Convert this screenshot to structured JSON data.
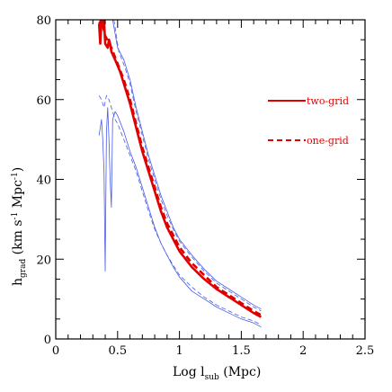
{
  "chart_data": {
    "type": "line",
    "xlabel": "Log l",
    "xlabel_sub": "sub",
    "xlabel_units": " (Mpc)",
    "ylabel": "h",
    "ylabel_sub": "grad",
    "ylabel_units": " (km s",
    "ylabel_exp1": "-1",
    "ylabel_mid": " Mpc",
    "ylabel_exp2": "-1",
    "ylabel_close": ")",
    "xlim": [
      0,
      2.5
    ],
    "ylim": [
      0,
      80
    ],
    "x_ticks": [
      0,
      0.5,
      1,
      1.5,
      2,
      2.5
    ],
    "x_tick_labels": [
      "0",
      "0.5",
      "1",
      "1.5",
      "2",
      "2.5"
    ],
    "y_ticks": [
      0,
      20,
      40,
      60,
      80
    ],
    "y_tick_labels": [
      "0",
      "20",
      "40",
      "60",
      "80"
    ],
    "legend_placement": "upper-right",
    "series": [
      {
        "name": "two-grid",
        "color": "#e00000",
        "style": "solid",
        "width": "thick",
        "points": [
          [
            0.35,
            79
          ],
          [
            0.36,
            74
          ],
          [
            0.37,
            80
          ],
          [
            0.38,
            79
          ],
          [
            0.39,
            80
          ],
          [
            0.4,
            74
          ],
          [
            0.42,
            73
          ],
          [
            0.43,
            75
          ],
          [
            0.44,
            74
          ],
          [
            0.45,
            72
          ],
          [
            0.48,
            70
          ],
          [
            0.52,
            67
          ],
          [
            0.56,
            63
          ],
          [
            0.6,
            59
          ],
          [
            0.65,
            53
          ],
          [
            0.7,
            47
          ],
          [
            0.75,
            42
          ],
          [
            0.8,
            37
          ],
          [
            0.85,
            32
          ],
          [
            0.9,
            28
          ],
          [
            0.95,
            25
          ],
          [
            1.0,
            22
          ],
          [
            1.1,
            18
          ],
          [
            1.2,
            15
          ],
          [
            1.3,
            12.5
          ],
          [
            1.4,
            10.5
          ],
          [
            1.5,
            8.5
          ],
          [
            1.6,
            6.5
          ],
          [
            1.66,
            5.5
          ]
        ]
      },
      {
        "name": "one-grid",
        "color": "#e00000",
        "style": "dashed",
        "width": "thick",
        "points": [
          [
            0.35,
            79
          ],
          [
            0.37,
            80
          ],
          [
            0.4,
            76
          ],
          [
            0.45,
            73
          ],
          [
            0.5,
            69
          ],
          [
            0.55,
            65
          ],
          [
            0.6,
            60
          ],
          [
            0.65,
            54
          ],
          [
            0.7,
            48
          ],
          [
            0.75,
            43
          ],
          [
            0.8,
            38
          ],
          [
            0.85,
            33
          ],
          [
            0.9,
            29
          ],
          [
            0.95,
            26
          ],
          [
            1.0,
            23
          ],
          [
            1.1,
            19
          ],
          [
            1.2,
            16
          ],
          [
            1.3,
            13
          ],
          [
            1.4,
            11
          ],
          [
            1.5,
            9
          ],
          [
            1.6,
            7
          ],
          [
            1.66,
            6
          ]
        ]
      },
      {
        "color": "#4a5ae8",
        "style": "solid",
        "width": "thin",
        "points": [
          [
            0.46,
            80
          ],
          [
            0.5,
            73
          ],
          [
            0.55,
            70
          ],
          [
            0.6,
            65
          ],
          [
            0.65,
            58
          ],
          [
            0.7,
            52
          ],
          [
            0.75,
            46
          ],
          [
            0.8,
            41
          ],
          [
            0.85,
            36
          ],
          [
            0.9,
            32
          ],
          [
            0.95,
            28
          ],
          [
            1.0,
            25
          ],
          [
            1.1,
            21
          ],
          [
            1.2,
            17.5
          ],
          [
            1.3,
            14.5
          ],
          [
            1.4,
            12.5
          ],
          [
            1.5,
            10.5
          ],
          [
            1.6,
            8.5
          ],
          [
            1.66,
            7.5
          ]
        ]
      },
      {
        "color": "#4a5ae8",
        "style": "dashed",
        "width": "thin",
        "points": [
          [
            0.47,
            80
          ],
          [
            0.51,
            72
          ],
          [
            0.56,
            68
          ],
          [
            0.6,
            64
          ],
          [
            0.65,
            57
          ],
          [
            0.7,
            51
          ],
          [
            0.75,
            45
          ],
          [
            0.8,
            40
          ],
          [
            0.85,
            35
          ],
          [
            0.9,
            31
          ],
          [
            0.95,
            27.5
          ],
          [
            1.0,
            24.5
          ],
          [
            1.1,
            20.5
          ],
          [
            1.2,
            17
          ],
          [
            1.3,
            14
          ],
          [
            1.4,
            12
          ],
          [
            1.5,
            10
          ],
          [
            1.6,
            8
          ],
          [
            1.66,
            7
          ]
        ]
      },
      {
        "color": "#4a5ae8",
        "style": "solid",
        "width": "thin",
        "points": [
          [
            0.35,
            51
          ],
          [
            0.37,
            55
          ],
          [
            0.38,
            50
          ],
          [
            0.39,
            42
          ],
          [
            0.4,
            17
          ],
          [
            0.41,
            52
          ],
          [
            0.42,
            58
          ],
          [
            0.43,
            50
          ],
          [
            0.44,
            40
          ],
          [
            0.45,
            33
          ],
          [
            0.46,
            55
          ],
          [
            0.48,
            57
          ],
          [
            0.5,
            56
          ],
          [
            0.55,
            52
          ],
          [
            0.6,
            47
          ],
          [
            0.65,
            43
          ],
          [
            0.7,
            38
          ],
          [
            0.75,
            33
          ],
          [
            0.8,
            28
          ],
          [
            0.85,
            24
          ],
          [
            0.9,
            21
          ],
          [
            0.95,
            18
          ],
          [
            1.0,
            15.5
          ],
          [
            1.1,
            12
          ],
          [
            1.2,
            10
          ],
          [
            1.3,
            8
          ],
          [
            1.4,
            6.5
          ],
          [
            1.5,
            5
          ],
          [
            1.6,
            4
          ],
          [
            1.66,
            3
          ]
        ]
      },
      {
        "color": "#4a5ae8",
        "style": "dashed",
        "width": "thin",
        "points": [
          [
            0.35,
            61
          ],
          [
            0.37,
            60
          ],
          [
            0.39,
            58
          ],
          [
            0.41,
            61
          ],
          [
            0.43,
            60
          ],
          [
            0.45,
            58
          ],
          [
            0.48,
            55
          ],
          [
            0.5,
            54
          ],
          [
            0.55,
            50
          ],
          [
            0.6,
            46
          ],
          [
            0.65,
            42
          ],
          [
            0.7,
            37
          ],
          [
            0.75,
            32
          ],
          [
            0.8,
            27.5
          ],
          [
            0.85,
            24
          ],
          [
            0.9,
            21
          ],
          [
            0.95,
            18.5
          ],
          [
            1.0,
            16
          ],
          [
            1.1,
            13
          ],
          [
            1.2,
            10.5
          ],
          [
            1.3,
            8.5
          ],
          [
            1.4,
            7
          ],
          [
            1.5,
            5.5
          ],
          [
            1.6,
            4.5
          ],
          [
            1.66,
            3.5
          ]
        ]
      }
    ]
  }
}
